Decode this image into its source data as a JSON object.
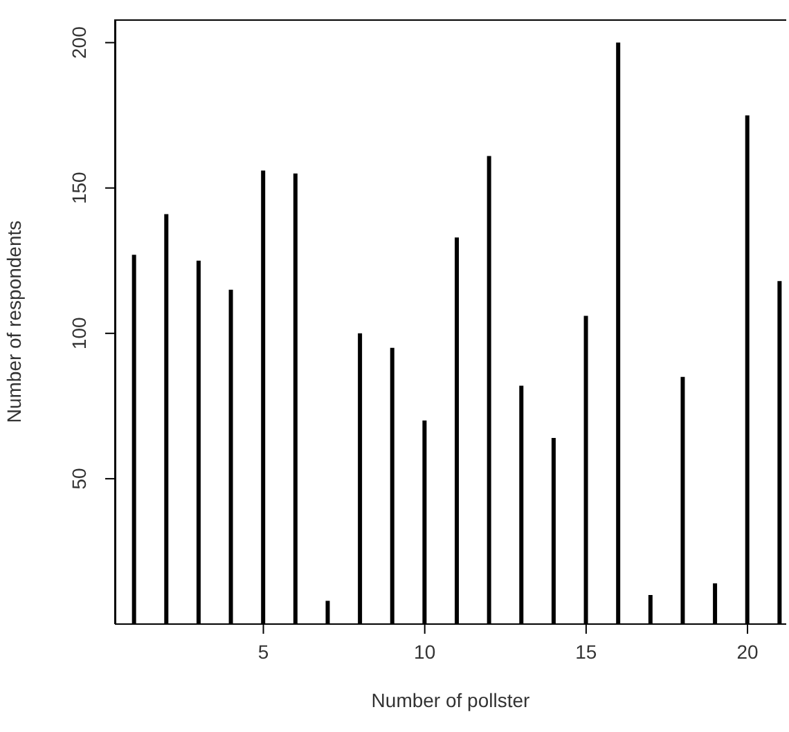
{
  "chart_data": {
    "type": "bar",
    "xlabel": "Number of pollster",
    "ylabel": "Number of respondents",
    "x": [
      1,
      2,
      3,
      4,
      5,
      6,
      7,
      8,
      9,
      10,
      11,
      12,
      13,
      14,
      15,
      16,
      17,
      18,
      19,
      20,
      21
    ],
    "values": [
      127,
      141,
      125,
      115,
      156,
      155,
      8,
      100,
      95,
      70,
      133,
      161,
      82,
      64,
      106,
      200,
      10,
      85,
      14,
      175,
      118
    ],
    "color": "#000000",
    "xlim": [
      0.4,
      21.2
    ],
    "xticks": [
      5,
      10,
      15,
      20
    ],
    "ylim": [
      0,
      208
    ],
    "yticks": [
      50,
      100,
      150,
      200
    ],
    "grid": false,
    "legend": false
  }
}
